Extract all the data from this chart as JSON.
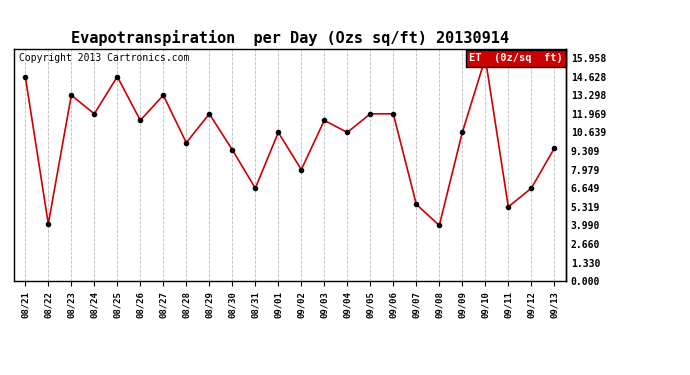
{
  "title": "Evapotranspiration  per Day (Ozs sq/ft) 20130914",
  "copyright": "Copyright 2013 Cartronics.com",
  "legend_label": "ET  (0z/sq  ft)",
  "x_labels": [
    "08/21",
    "08/22",
    "08/23",
    "08/24",
    "08/25",
    "08/26",
    "08/27",
    "08/28",
    "08/29",
    "08/30",
    "08/31",
    "09/01",
    "09/02",
    "09/03",
    "09/04",
    "09/05",
    "09/06",
    "09/07",
    "09/08",
    "09/09",
    "09/10",
    "09/11",
    "09/12",
    "09/13"
  ],
  "y_values": [
    14.628,
    4.1,
    13.298,
    11.969,
    14.628,
    11.5,
    13.298,
    9.9,
    11.969,
    9.4,
    6.649,
    10.639,
    7.979,
    11.5,
    10.639,
    11.969,
    11.969,
    5.5,
    3.99,
    10.639,
    15.958,
    5.319,
    6.649,
    9.5
  ],
  "yticks": [
    0.0,
    1.33,
    2.66,
    3.99,
    5.319,
    6.649,
    7.979,
    9.309,
    10.639,
    11.969,
    13.298,
    14.628,
    15.958
  ],
  "ylim": [
    0.0,
    16.62
  ],
  "line_color": "#cc0000",
  "marker_color": "#000000",
  "bg_color": "#ffffff",
  "grid_color": "#bbbbbb",
  "title_fontsize": 11,
  "copyright_fontsize": 7,
  "legend_bg": "#cc0000",
  "legend_text_color": "#ffffff"
}
